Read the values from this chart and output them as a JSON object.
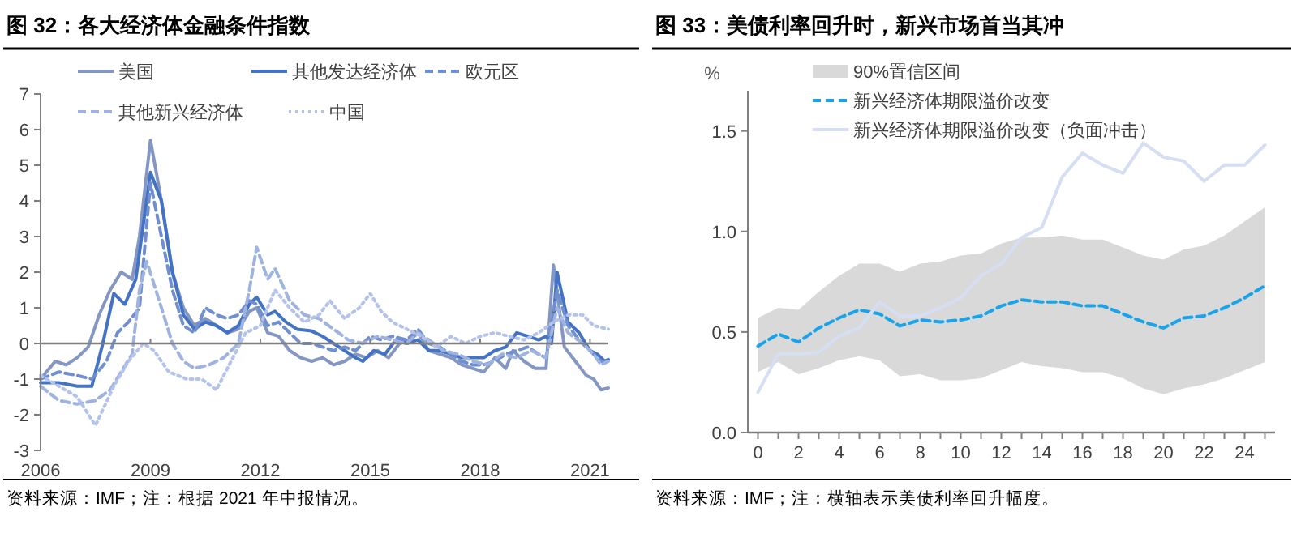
{
  "chart_data": [
    {
      "type": "line",
      "title": "图 32：各大经济体金融条件指数",
      "xlim": [
        2006,
        2021.5
      ],
      "ylim": [
        -3,
        7
      ],
      "yticks": [
        -3,
        -2,
        -1,
        0,
        1,
        2,
        3,
        4,
        5,
        6,
        7
      ],
      "xticks": [
        2006,
        2009,
        2012,
        2015,
        2018,
        2021
      ],
      "grid": false,
      "legend": "top",
      "ref_lines": [
        {
          "axis": "y",
          "value": 0,
          "color": "#7f7f7f"
        }
      ],
      "annotations": [
        "资料来源：IMF；注：根据 2021 年中报情况。"
      ],
      "series": [
        {
          "name": "美国",
          "color": "#8497c4",
          "line_style": "solid",
          "x": [
            2006,
            2006.4,
            2006.7,
            2007,
            2007.3,
            2007.6,
            2007.9,
            2008.2,
            2008.5,
            2008.7,
            2009.0,
            2009.3,
            2009.6,
            2009.9,
            2010.2,
            2010.5,
            2010.8,
            2011.1,
            2011.4,
            2011.7,
            2011.9,
            2012.2,
            2012.5,
            2012.8,
            2013.1,
            2013.4,
            2013.7,
            2014,
            2014.3,
            2014.6,
            2014.9,
            2015.2,
            2015.5,
            2015.8,
            2016.1,
            2016.3,
            2016.6,
            2016.9,
            2017.2,
            2017.5,
            2017.8,
            2018.1,
            2018.4,
            2018.7,
            2018.9,
            2019.2,
            2019.5,
            2019.8,
            2020.0,
            2020.3,
            2020.6,
            2020.9,
            2021.1,
            2021.3,
            2021.5
          ],
          "values": [
            -1.0,
            -0.5,
            -0.6,
            -0.4,
            -0.1,
            0.8,
            1.5,
            2.0,
            1.8,
            3.0,
            5.7,
            4.0,
            2.0,
            1.0,
            0.5,
            0.7,
            0.5,
            0.3,
            0.4,
            0.9,
            1.0,
            0.3,
            0.2,
            -0.2,
            -0.4,
            -0.5,
            -0.4,
            -0.6,
            -0.5,
            -0.3,
            -0.4,
            -0.2,
            -0.4,
            0.0,
            0.1,
            0.3,
            -0.2,
            -0.3,
            -0.4,
            -0.6,
            -0.7,
            -0.8,
            -0.4,
            -0.7,
            -0.2,
            -0.5,
            -0.7,
            -0.7,
            2.2,
            -0.1,
            -0.5,
            -0.9,
            -1.0,
            -1.3,
            -1.25
          ]
        },
        {
          "name": "其他发达经济体",
          "color": "#4472c4",
          "line_style": "solid",
          "x": [
            2006,
            2006.5,
            2007,
            2007.4,
            2007.7,
            2008,
            2008.3,
            2008.6,
            2009.0,
            2009.3,
            2009.6,
            2009.9,
            2010.2,
            2010.5,
            2010.8,
            2011.1,
            2011.4,
            2011.7,
            2011.9,
            2012.2,
            2012.4,
            2012.7,
            2013,
            2013.4,
            2013.7,
            2014,
            2014.3,
            2014.6,
            2014.8,
            2015.1,
            2015.4,
            2015.7,
            2016,
            2016.3,
            2016.6,
            2016.9,
            2017.2,
            2017.5,
            2017.8,
            2018.1,
            2018.4,
            2018.7,
            2019.0,
            2019.3,
            2019.6,
            2019.8,
            2019.95,
            2020.1,
            2020.4,
            2020.7,
            2021.0,
            2021.2,
            2021.4,
            2021.5
          ],
          "values": [
            -1.1,
            -1.1,
            -1.2,
            -1.2,
            0.0,
            1.4,
            1.1,
            1.8,
            4.8,
            4.0,
            2.0,
            0.8,
            0.4,
            0.6,
            0.5,
            0.3,
            0.5,
            1.1,
            1.3,
            0.8,
            0.9,
            0.6,
            0.4,
            0.35,
            0.2,
            0.0,
            -0.2,
            -0.4,
            -0.5,
            -0.2,
            -0.3,
            0.1,
            0.0,
            0.1,
            -0.2,
            -0.2,
            -0.3,
            -0.4,
            -0.4,
            -0.4,
            -0.2,
            -0.1,
            0.3,
            0.2,
            0.1,
            0.2,
            0.0,
            2.0,
            0.6,
            0.3,
            -0.2,
            -0.3,
            -0.5,
            -0.45
          ]
        },
        {
          "name": "欧元区",
          "color": "#6f8fd1",
          "line_style": "dashed",
          "x": [
            2006,
            2006.5,
            2007,
            2007.4,
            2007.8,
            2008.1,
            2008.4,
            2008.7,
            2009.0,
            2009.3,
            2009.6,
            2009.9,
            2010.2,
            2010.5,
            2010.8,
            2011.1,
            2011.4,
            2011.7,
            2011.9,
            2012.2,
            2012.5,
            2012.8,
            2013.1,
            2013.4,
            2013.7,
            2014.0,
            2014.3,
            2014.6,
            2015.0,
            2015.3,
            2015.6,
            2016.0,
            2016.3,
            2016.6,
            2016.9,
            2017.2,
            2017.5,
            2017.8,
            2018.1,
            2018.4,
            2018.7,
            2019.0,
            2019.3,
            2019.6,
            2019.8,
            2020.1,
            2020.4,
            2020.7,
            2021.0,
            2021.3,
            2021.5
          ],
          "values": [
            -1.0,
            -0.8,
            -0.9,
            -1.0,
            -0.5,
            0.3,
            0.6,
            1.0,
            4.5,
            3.0,
            1.5,
            0.5,
            0.3,
            1.0,
            0.8,
            0.7,
            0.8,
            1.2,
            1.1,
            0.5,
            0.6,
            0.3,
            0.0,
            0.0,
            -0.1,
            -0.2,
            -0.1,
            -0.2,
            0.2,
            0.1,
            0.2,
            0.1,
            0.4,
            0.0,
            -0.1,
            -0.3,
            -0.5,
            -0.6,
            -0.6,
            -0.5,
            -0.3,
            -0.2,
            -0.1,
            -0.3,
            -0.4,
            1.5,
            0.5,
            0.1,
            -0.2,
            -0.5,
            -0.5
          ]
        },
        {
          "name": "其他新兴经济体",
          "color": "#9fb3e0",
          "line_style": "dashed",
          "x": [
            2006,
            2006.5,
            2007,
            2007.5,
            2007.9,
            2008.2,
            2008.5,
            2008.7,
            2008.9,
            2009.3,
            2009.6,
            2009.9,
            2010.2,
            2010.6,
            2011.0,
            2011.4,
            2011.7,
            2011.9,
            2012.2,
            2012.4,
            2012.8,
            2013.2,
            2013.6,
            2014,
            2014.4,
            2014.8,
            2015.2,
            2015.6,
            2016,
            2016.3,
            2016.6,
            2017,
            2017.4,
            2017.8,
            2018.2,
            2018.6,
            2019,
            2019.4,
            2019.8,
            2020.1,
            2020.4,
            2020.8,
            2021.1,
            2021.3,
            2021.5
          ],
          "values": [
            -1.2,
            -1.6,
            -1.7,
            -1.6,
            -1.3,
            -0.8,
            -0.3,
            1.5,
            2.3,
            1.0,
            0.0,
            -0.5,
            -0.7,
            -0.6,
            -0.4,
            0.0,
            1.5,
            2.7,
            1.8,
            2.1,
            1.2,
            0.8,
            0.7,
            0.4,
            0.1,
            0.0,
            0.2,
            0.1,
            0.0,
            0.3,
            0.1,
            -0.2,
            -0.3,
            -0.5,
            -0.6,
            -0.3,
            -0.4,
            -0.2,
            -0.4,
            1.0,
            0.3,
            0.0,
            -0.3,
            -0.6,
            -0.5
          ]
        },
        {
          "name": "中国",
          "color": "#b4c3ea",
          "line_style": "dotted",
          "x": [
            2006,
            2006.5,
            2007,
            2007.5,
            2008,
            2008.4,
            2008.8,
            2009.1,
            2009.5,
            2010,
            2010.4,
            2010.8,
            2011.2,
            2011.6,
            2012.0,
            2012.4,
            2012.8,
            2013.2,
            2013.6,
            2013.9,
            2014.3,
            2014.7,
            2015.0,
            2015.3,
            2015.6,
            2016,
            2016.4,
            2016.8,
            2017.2,
            2017.6,
            2018,
            2018.4,
            2018.8,
            2019.2,
            2019.6,
            2020.0,
            2020.4,
            2020.8,
            2021.1,
            2021.5
          ],
          "values": [
            -0.9,
            -1.2,
            -1.5,
            -2.3,
            -1.2,
            -0.5,
            0.0,
            -0.2,
            -0.8,
            -1.0,
            -1.0,
            -1.3,
            -0.5,
            0.3,
            0.5,
            1.5,
            1.0,
            0.6,
            0.8,
            1.2,
            0.7,
            1.0,
            1.4,
            0.9,
            0.6,
            0.4,
            0.2,
            -0.1,
            0.2,
            0.0,
            0.2,
            0.3,
            0.2,
            0.1,
            0.3,
            0.6,
            0.8,
            0.8,
            0.5,
            0.4
          ]
        }
      ]
    },
    {
      "type": "line",
      "title": "图 33：美债利率回升时，新兴市场首当其冲",
      "ylabel": "%",
      "xlim": [
        -0.5,
        25.5
      ],
      "ylim": [
        0,
        1.7
      ],
      "yticks": [
        {
          "value": 0,
          "label": "0.0"
        },
        0.5,
        {
          "value": 1,
          "label": "1.0"
        },
        1.5
      ],
      "xticks": [
        0,
        {
          "value": 1,
          "label": null
        },
        2,
        {
          "value": 3,
          "label": null
        },
        4,
        {
          "value": 5,
          "label": null
        },
        6,
        {
          "value": 7,
          "label": null
        },
        8,
        {
          "value": 9,
          "label": null
        },
        10,
        {
          "value": 11,
          "label": null
        },
        12,
        {
          "value": 13,
          "label": null
        },
        14,
        {
          "value": 15,
          "label": null
        },
        16,
        {
          "value": 17,
          "label": null
        },
        18,
        {
          "value": 19,
          "label": null
        },
        20,
        {
          "value": 21,
          "label": null
        },
        22,
        {
          "value": 23,
          "label": null
        },
        24,
        {
          "value": 25,
          "label": null
        }
      ],
      "grid": false,
      "legend": "top left",
      "annotations": [
        "资料来源：IMF；注：横轴表示美债利率回升幅度。"
      ],
      "x": [
        0,
        1,
        2,
        3,
        4,
        5,
        6,
        7,
        8,
        9,
        10,
        11,
        12,
        13,
        14,
        15,
        16,
        17,
        18,
        19,
        20,
        21,
        22,
        23,
        24,
        25
      ],
      "series": [
        {
          "name": "90%置信区间",
          "type": "area",
          "color": "#d9d9d9",
          "values": [
            null,
            null,
            null,
            null,
            null,
            null,
            null,
            null,
            null,
            null,
            null,
            null,
            null,
            null,
            null,
            null,
            null,
            null,
            null,
            null,
            null,
            null,
            null,
            null,
            null,
            null
          ],
          "lower": [
            0.3,
            0.35,
            0.29,
            0.32,
            0.36,
            0.38,
            0.36,
            0.28,
            0.29,
            0.26,
            0.26,
            0.27,
            0.31,
            0.35,
            0.33,
            0.32,
            0.3,
            0.3,
            0.27,
            0.22,
            0.19,
            0.22,
            0.24,
            0.27,
            0.31,
            0.35
          ],
          "upper": [
            0.57,
            0.62,
            0.61,
            0.7,
            0.78,
            0.84,
            0.84,
            0.8,
            0.84,
            0.85,
            0.88,
            0.89,
            0.94,
            0.97,
            0.97,
            0.98,
            0.96,
            0.96,
            0.92,
            0.88,
            0.86,
            0.91,
            0.93,
            0.98,
            1.05,
            1.12
          ]
        },
        {
          "name": "新兴经济体期限溢价改变",
          "color": "#1aa3e8",
          "line_style": "dashed",
          "values": [
            0.43,
            0.49,
            0.45,
            0.52,
            0.57,
            0.61,
            0.59,
            0.53,
            0.56,
            0.55,
            0.56,
            0.58,
            0.63,
            0.66,
            0.65,
            0.65,
            0.63,
            0.63,
            0.59,
            0.55,
            0.52,
            0.57,
            0.58,
            0.62,
            0.67,
            0.73
          ]
        },
        {
          "name": "新兴经济体期限溢价改变（负面冲击）",
          "color": "#d5def2",
          "line_style": "solid",
          "values": [
            0.2,
            0.39,
            0.39,
            0.4,
            0.48,
            0.52,
            0.65,
            0.58,
            0.58,
            0.62,
            0.67,
            0.78,
            0.84,
            0.97,
            1.02,
            1.27,
            1.39,
            1.33,
            1.29,
            1.44,
            1.37,
            1.35,
            1.25,
            1.33,
            1.33,
            1.43
          ]
        }
      ]
    }
  ]
}
